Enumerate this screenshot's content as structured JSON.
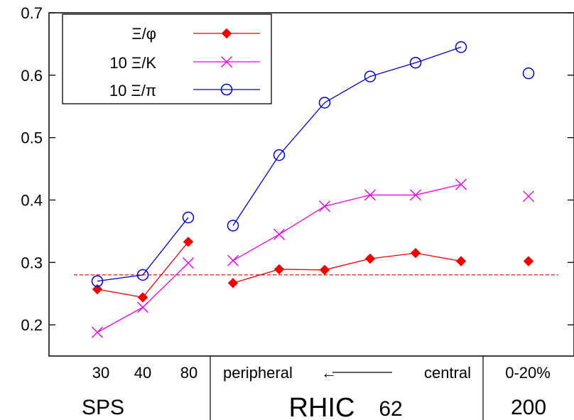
{
  "chart_data": {
    "type": "line",
    "title": "",
    "xlabel": "",
    "ylabel": "",
    "ylim": [
      0.15,
      0.7
    ],
    "yticks": [
      "0.2",
      "0.3",
      "0.4",
      "0.5",
      "0.6",
      "0.7"
    ],
    "grid": false,
    "legend_position": "top-left",
    "x_tick_labels": [
      "30",
      "40",
      "80",
      "peripheral",
      "central",
      "0-20%"
    ],
    "x_arrow": "←",
    "group_labels": {
      "sps": "SPS",
      "rhic": "RHIC",
      "rhic_energy": "62",
      "top_energy": "200"
    },
    "reference_line": {
      "y": 0.28,
      "style": "dashed",
      "color": "#dd0000"
    },
    "x_positions": [
      "SPS 30",
      "SPS 40",
      "SPS 80",
      "RHIC 62 bin 1",
      "RHIC 62 bin 2",
      "RHIC 62 bin 3",
      "RHIC 62 bin 4",
      "RHIC 62 bin 5",
      "RHIC 62 bin 6",
      "RHIC 200 0-20%"
    ],
    "series": [
      {
        "name": "Ξ/φ",
        "color": "#ee0000",
        "marker": "diamond",
        "segments": [
          [
            0,
            2
          ],
          [
            3,
            8
          ]
        ],
        "values": [
          0.257,
          0.244,
          0.333,
          0.267,
          0.289,
          0.288,
          0.306,
          0.315,
          0.302,
          0.302
        ]
      },
      {
        "name": "10 Ξ/K",
        "color": "#ee00ee",
        "marker": "x",
        "segments": [
          [
            0,
            2
          ],
          [
            3,
            8
          ]
        ],
        "values": [
          0.188,
          0.228,
          0.299,
          0.303,
          0.345,
          0.39,
          0.408,
          0.408,
          0.425,
          0.406
        ]
      },
      {
        "name": "10 Ξ/π",
        "color": "#0000cc",
        "marker": "circle",
        "segments": [
          [
            0,
            2
          ],
          [
            3,
            8
          ]
        ],
        "values": [
          0.27,
          0.28,
          0.372,
          0.359,
          0.472,
          0.556,
          0.598,
          0.62,
          0.645,
          0.603
        ]
      }
    ]
  }
}
